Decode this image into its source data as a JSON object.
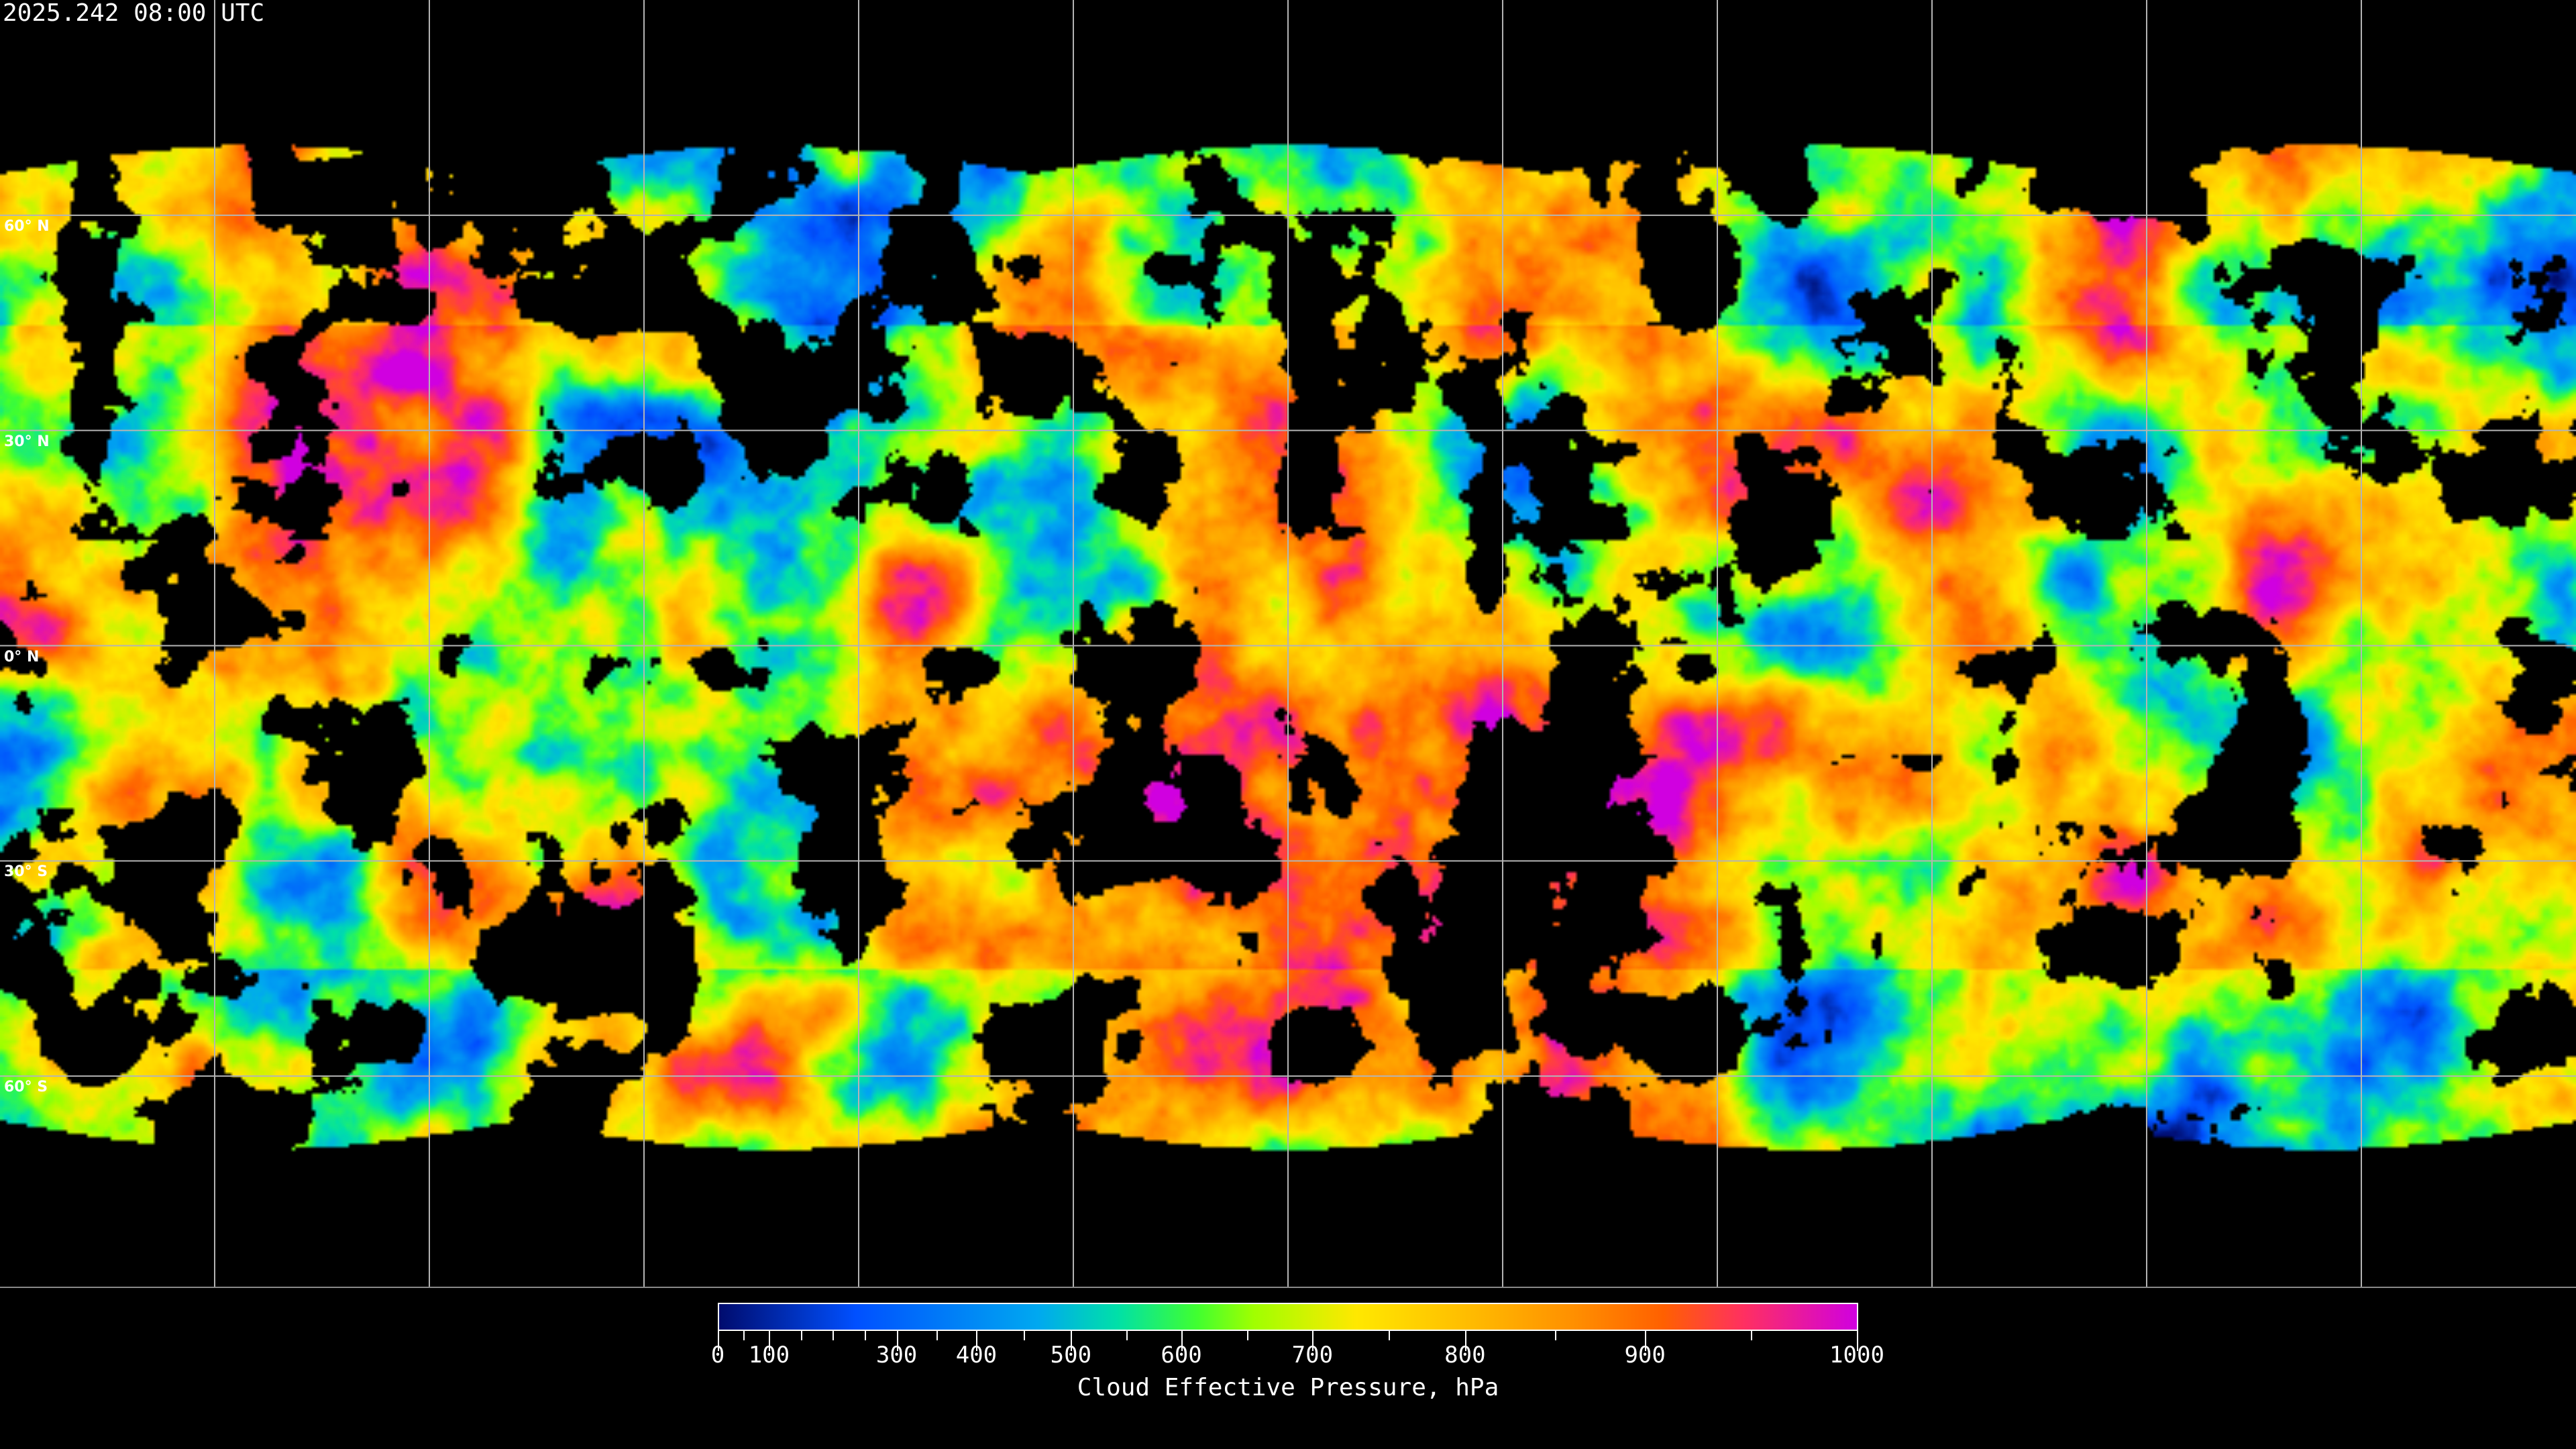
{
  "title": "2025.242 08:00 UTC",
  "map": {
    "projection": "equirectangular",
    "grid_spacing_deg": 30,
    "lat_labels": [
      "60° N",
      "30° N",
      "0° N",
      "30° S",
      "60° S"
    ],
    "lat_values": [
      60,
      30,
      0,
      -30,
      -60
    ],
    "lon_lines": [
      -150,
      -120,
      -90,
      -60,
      -30,
      0,
      30,
      60,
      90,
      120,
      150
    ],
    "clear_sky_color": "#000000",
    "grid_color": "#b4b4b4"
  },
  "colorbar": {
    "title": "Cloud Effective Pressure, hPa",
    "range": [
      0,
      1000
    ],
    "major_ticks": [
      "0",
      "100",
      "300",
      "400",
      "500",
      "600",
      "700",
      "800",
      "900",
      "1000"
    ],
    "minor_ticks": [
      50,
      150,
      200,
      250,
      350,
      450,
      550,
      650,
      750,
      850,
      950
    ],
    "colors": [
      "#000c6e",
      "#0050ff",
      "#00a8f0",
      "#00e0a8",
      "#40ff30",
      "#a0ff00",
      "#ffe800",
      "#ffc000",
      "#ff9000",
      "#ff6000",
      "#ff3060",
      "#d000e0"
    ]
  }
}
